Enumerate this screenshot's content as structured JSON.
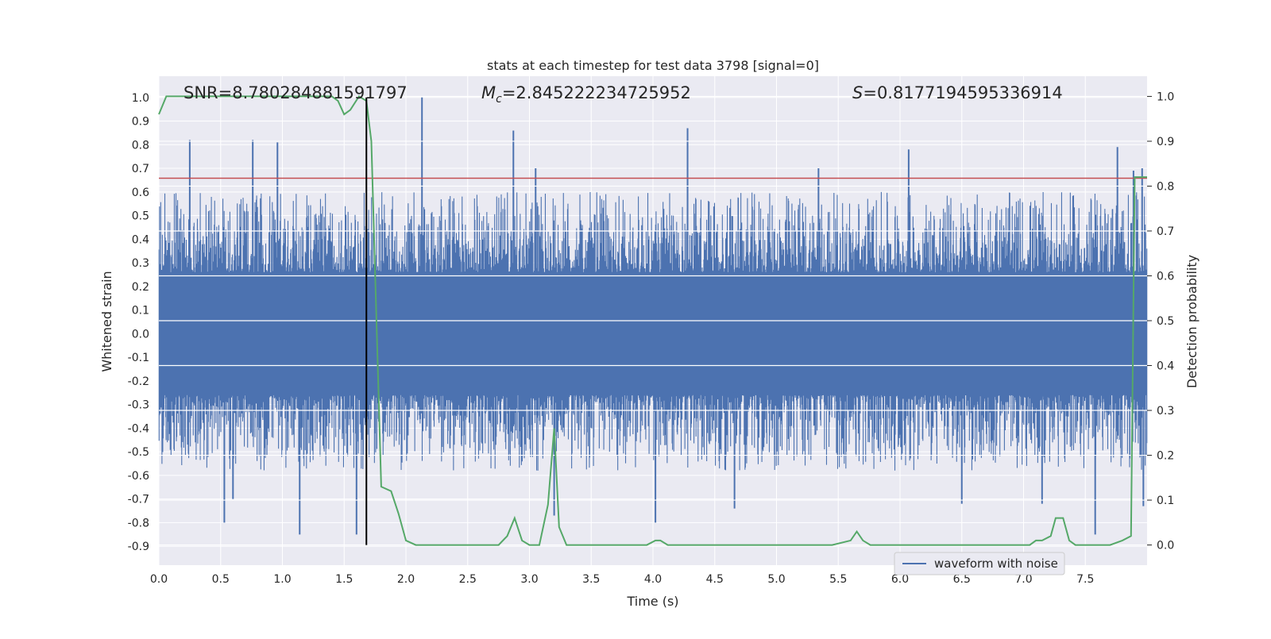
{
  "chart_data": {
    "type": "line",
    "title": "stats at each timestep for test data 3798 [signal=0]",
    "xlabel": "Time (s)",
    "ylabel": "Whitened strain",
    "y2label": "Detection probability",
    "xlim": [
      0.0,
      8.0
    ],
    "ylim": [
      -0.98,
      1.09
    ],
    "y2lim": [
      -0.045,
      1.045
    ],
    "xticks": [
      "0.0",
      "0.5",
      "1.0",
      "1.5",
      "2.0",
      "2.5",
      "3.0",
      "3.5",
      "4.0",
      "4.5",
      "5.0",
      "5.5",
      "6.0",
      "6.5",
      "7.0",
      "7.5"
    ],
    "yticks": [
      "1.0",
      "0.9",
      "0.8",
      "0.7",
      "0.6",
      "0.5",
      "0.4",
      "0.3",
      "0.2",
      "0.1",
      "0.0",
      "-0.1",
      "-0.2",
      "-0.3",
      "-0.4",
      "-0.5",
      "-0.6",
      "-0.7",
      "-0.8",
      "-0.9"
    ],
    "y2ticks": [
      "1.0",
      "0.9",
      "0.8",
      "0.7",
      "0.6",
      "0.5",
      "0.4",
      "0.3",
      "0.2",
      "0.1",
      "0.0"
    ],
    "grid": true,
    "legend": {
      "position": "lower-right",
      "entries": [
        "waveform with noise"
      ]
    },
    "annotations": {
      "snr": "SNR=8.780284881591797",
      "mc_symbol": "M",
      "mc_sub": "c",
      "mc_value": "=2.845222234725952",
      "s_symbol": "S",
      "s_value": "=0.8177194595336914"
    },
    "threshold": {
      "y2": 0.8177194595336914,
      "color": "#c44e52"
    },
    "marker_time": 1.68,
    "colors": {
      "waveform": "#4c72b0",
      "probability": "#55a868",
      "threshold": "#c44e52",
      "marker": "#000000",
      "plot_bg": "#eaeaf2"
    },
    "series": [
      {
        "name": "waveform with noise",
        "description_envelope": "dense noisy strain between about -0.5 and 0.5 with spikes",
        "spikes_positive": [
          [
            0.25,
            0.82
          ],
          [
            0.76,
            0.82
          ],
          [
            0.96,
            0.81
          ],
          [
            2.13,
            1.0
          ],
          [
            2.87,
            0.86
          ],
          [
            4.28,
            0.87
          ],
          [
            7.76,
            0.79
          ],
          [
            7.89,
            0.69
          ],
          [
            7.96,
            0.7
          ],
          [
            5.34,
            0.7
          ],
          [
            6.07,
            0.78
          ],
          [
            3.05,
            0.7
          ]
        ],
        "spikes_negative": [
          [
            0.53,
            -0.8
          ],
          [
            1.14,
            -0.85
          ],
          [
            1.6,
            -0.85
          ],
          [
            4.02,
            -0.8
          ],
          [
            4.66,
            -0.74
          ],
          [
            3.2,
            -0.77
          ],
          [
            6.5,
            -0.72
          ],
          [
            7.58,
            -0.85
          ],
          [
            7.15,
            -0.72
          ],
          [
            7.97,
            -0.73
          ],
          [
            0.6,
            -0.7
          ]
        ]
      },
      {
        "name": "",
        "axis": "right",
        "x": [
          0.0,
          0.06,
          0.2,
          0.4,
          0.6,
          0.8,
          1.0,
          1.2,
          1.4,
          1.45,
          1.5,
          1.55,
          1.62,
          1.68,
          1.72,
          1.8,
          1.88,
          1.94,
          2.0,
          2.08,
          2.2,
          2.4,
          2.6,
          2.75,
          2.82,
          2.88,
          2.94,
          3.0,
          3.08,
          3.15,
          3.2,
          3.24,
          3.3,
          3.4,
          3.6,
          3.8,
          3.95,
          4.02,
          4.06,
          4.12,
          4.2,
          4.3,
          4.4,
          4.5,
          4.7,
          4.9,
          5.1,
          5.3,
          5.45,
          5.6,
          5.65,
          5.7,
          5.76,
          5.9,
          6.1,
          6.3,
          6.5,
          6.7,
          6.9,
          7.05,
          7.1,
          7.15,
          7.22,
          7.26,
          7.32,
          7.37,
          7.42,
          7.47,
          7.55,
          7.7,
          7.8,
          7.87,
          7.9,
          8.0
        ],
        "values": [
          0.96,
          1.0,
          1.0,
          1.0,
          1.0,
          1.0,
          1.0,
          1.0,
          1.0,
          0.99,
          0.96,
          0.97,
          1.0,
          0.99,
          0.9,
          0.13,
          0.12,
          0.07,
          0.01,
          0.0,
          0.0,
          0.0,
          0.0,
          0.0,
          0.02,
          0.06,
          0.01,
          0.0,
          0.0,
          0.09,
          0.26,
          0.04,
          0.0,
          0.0,
          0.0,
          0.0,
          0.0,
          0.01,
          0.01,
          0.0,
          0.0,
          0.0,
          0.0,
          0.0,
          0.0,
          0.0,
          0.0,
          0.0,
          0.0,
          0.01,
          0.03,
          0.01,
          0.0,
          0.0,
          0.0,
          0.0,
          0.0,
          0.0,
          0.0,
          0.0,
          0.01,
          0.01,
          0.02,
          0.06,
          0.06,
          0.01,
          0.0,
          0.0,
          0.0,
          0.0,
          0.01,
          0.02,
          0.82,
          0.82
        ]
      }
    ]
  }
}
